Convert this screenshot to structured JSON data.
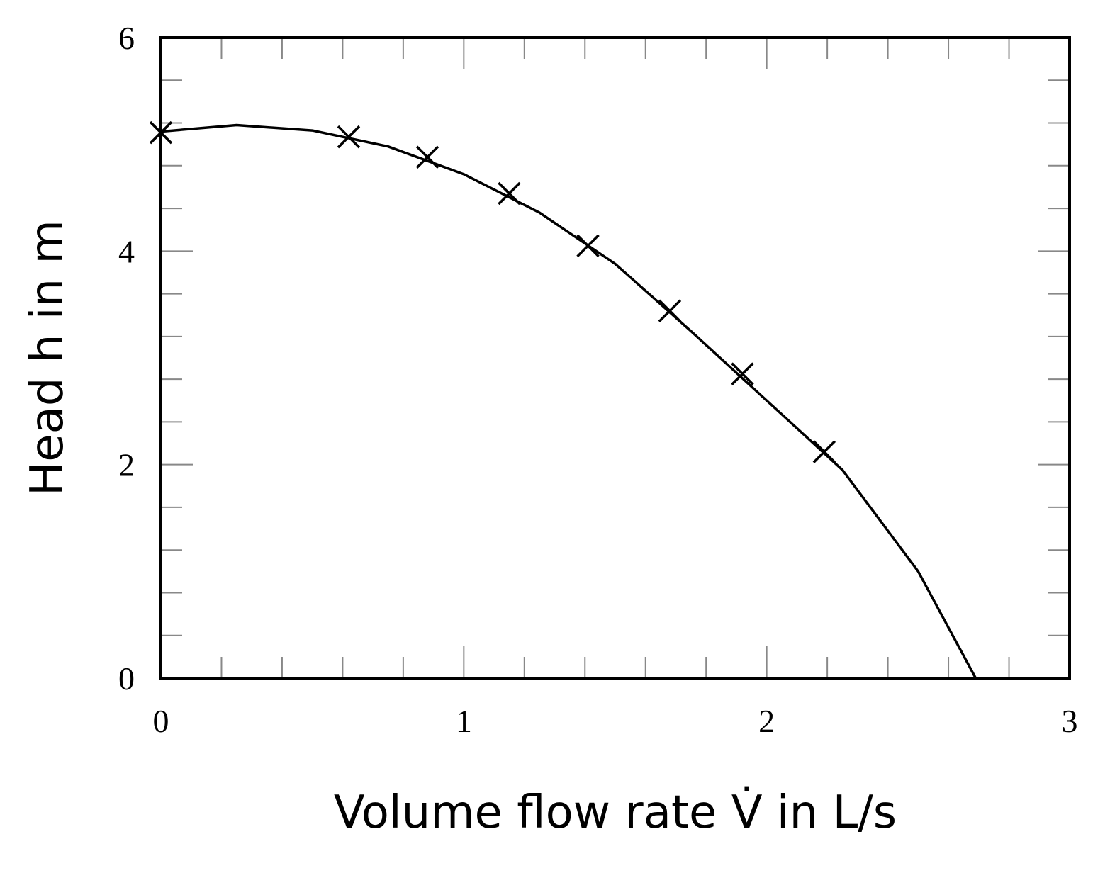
{
  "chart_data": {
    "type": "scatter",
    "xlabel": "Volume flow rate V̇ in L/s",
    "ylabel": "Head h in m",
    "xlim": [
      0,
      3
    ],
    "xticks": [
      0,
      1,
      2,
      3
    ],
    "ylim": [
      0,
      6
    ],
    "yticks": [
      0,
      2,
      4,
      6
    ],
    "series": [
      {
        "type": "scatter",
        "color": "#000000",
        "x": [
          0,
          0.62,
          0.88,
          1.15,
          1.41,
          1.68,
          1.92,
          2.19
        ],
        "values": [
          5.11,
          5.07,
          4.88,
          4.54,
          4.05,
          3.44,
          2.85,
          2.12
        ]
      },
      {
        "type": "line",
        "color": "#000000",
        "x": [
          0,
          0.25,
          0.5,
          0.75,
          1,
          1.25,
          1.5,
          1.75,
          2,
          2.25,
          2.5,
          2.69
        ],
        "values": [
          5.12,
          5.18,
          5.13,
          4.98,
          4.72,
          4.36,
          3.88,
          3.25,
          2.6,
          1.95,
          1.0,
          0
        ]
      }
    ]
  }
}
